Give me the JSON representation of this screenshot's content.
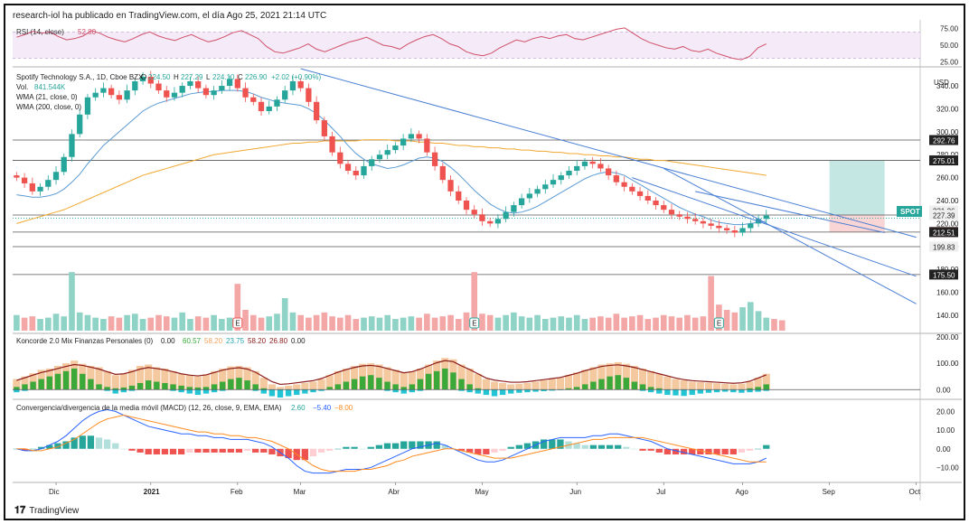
{
  "header": {
    "published_by": "research-iol ha publicado en TradingView.com, el día Ago 25, 2021 21:14 UTC"
  },
  "brand": {
    "name": "TradingView",
    "icon": "tradingview-logo-icon"
  },
  "colors": {
    "up": "#26a69a",
    "down": "#ef5350",
    "rsi": "#ab47bc",
    "wma21": "#5b9bd5",
    "wma200": "#f0a830",
    "trendline": "#4a7fd4",
    "target_zone": "#b2dfdb",
    "stop_zone": "#f8c7c7",
    "macd": "#2962ff",
    "signal": "#ff8a1f",
    "koncorde_line": "#8b1a1a"
  },
  "chart_data": [
    {
      "id": "rsi_panel",
      "type": "line",
      "title": "RSI (14, close)",
      "last_value": "52.80",
      "ylim": [
        20,
        80
      ],
      "y_ticks": [
        "75.00",
        "50.00",
        "25.00"
      ],
      "y_tick_values": [
        75,
        50,
        25
      ],
      "band": [
        30,
        70
      ],
      "values": [
        62,
        66,
        71,
        68,
        70,
        63,
        58,
        60,
        64,
        72,
        68,
        62,
        58,
        55,
        60,
        66,
        70,
        64,
        60,
        57,
        62,
        66,
        60,
        55,
        58,
        63,
        69,
        72,
        66,
        60,
        48,
        40,
        38,
        42,
        46,
        52,
        44,
        40,
        45,
        50,
        55,
        58,
        62,
        56,
        50,
        48,
        44,
        52,
        58,
        63,
        66,
        60,
        52,
        48,
        40,
        36,
        34,
        38,
        46,
        52,
        58,
        55,
        60,
        63,
        60,
        64,
        66,
        60,
        58,
        62,
        66,
        70,
        74,
        76,
        68,
        60,
        54,
        50,
        46,
        44,
        48,
        42,
        40,
        44,
        38,
        34,
        30,
        28,
        33,
        46,
        52
      ]
    },
    {
      "id": "price_panel",
      "type": "candlestick",
      "title": "Spotify Technology S.A., 1D, Cboe BZX",
      "ohlc_header": {
        "o": "224.50",
        "h": "227.29",
        "l": "224.10",
        "c": "226.90",
        "change": "+2.02 (+0.90%)"
      },
      "ticker": "SPOT",
      "currency": "USD",
      "ylim": [
        125,
        355
      ],
      "y_ticks": [
        "340.00",
        "320.00",
        "300.00",
        "280.00",
        "260.00",
        "240.00",
        "220.00",
        "200.00",
        "180.00",
        "160.00",
        "140.00"
      ],
      "y_tick_values": [
        340,
        320,
        300,
        280,
        260,
        240,
        220,
        200,
        180,
        160,
        140
      ],
      "price_labels": [
        {
          "text": "292.76",
          "value": 292.76,
          "style": "dark"
        },
        {
          "text": "275.59",
          "value": 275.59,
          "style": "light"
        },
        {
          "text": "275.01",
          "value": 275.01,
          "style": "dark"
        },
        {
          "text": "231.26",
          "value": 231.26,
          "style": "light"
        },
        {
          "text": "227.39",
          "value": 227.39,
          "style": "light"
        },
        {
          "text": "212.57",
          "value": 212.57,
          "style": "red"
        },
        {
          "text": "212.51",
          "value": 212.51,
          "style": "dark"
        },
        {
          "text": "199.83",
          "value": 199.83,
          "style": "light"
        },
        {
          "text": "175.50",
          "value": 175.5,
          "style": "dark"
        }
      ],
      "horizontal_levels": [
        292.76,
        275.01,
        227.39,
        212.51,
        199.83,
        175.5
      ],
      "x_labels": [
        "Dic",
        "2021",
        "Feb",
        "Mar",
        "Abr",
        "May",
        "Jun",
        "Jul",
        "Ago",
        "Sep",
        "Oct"
      ],
      "x_label_index": [
        5,
        17,
        28,
        36,
        48,
        59,
        71,
        82,
        92,
        103,
        114
      ],
      "total_slots": 115,
      "closes": [
        260,
        255,
        248,
        252,
        258,
        265,
        278,
        298,
        315,
        330,
        334,
        338,
        332,
        328,
        336,
        344,
        348,
        342,
        336,
        330,
        334,
        340,
        344,
        338,
        332,
        336,
        340,
        346,
        338,
        330,
        326,
        318,
        322,
        328,
        336,
        344,
        338,
        326,
        310,
        296,
        282,
        272,
        266,
        262,
        270,
        276,
        280,
        284,
        288,
        294,
        298,
        294,
        282,
        270,
        258,
        248,
        240,
        232,
        228,
        222,
        220,
        224,
        230,
        236,
        242,
        246,
        250,
        254,
        258,
        262,
        266,
        270,
        274,
        272,
        268,
        262,
        256,
        252,
        248,
        244,
        240,
        236,
        232,
        228,
        226,
        224,
        222,
        220,
        218,
        216,
        214,
        212,
        216,
        220,
        224,
        226.9
      ],
      "wma21": [
        245,
        244,
        243,
        243,
        244,
        246,
        250,
        256,
        263,
        272,
        280,
        288,
        294,
        300,
        306,
        312,
        318,
        322,
        325,
        327,
        329,
        331,
        333,
        334,
        335,
        335,
        336,
        336,
        336,
        335,
        333,
        330,
        328,
        326,
        325,
        324,
        323,
        320,
        316,
        310,
        303,
        296,
        288,
        281,
        276,
        272,
        270,
        268,
        269,
        271,
        274,
        277,
        278,
        277,
        274,
        269,
        263,
        256,
        249,
        243,
        237,
        233,
        230,
        229,
        230,
        232,
        235,
        239,
        243,
        247,
        251,
        255,
        259,
        262,
        264,
        265,
        264,
        262,
        258,
        254,
        250,
        246,
        242,
        238,
        234,
        231,
        228,
        226,
        223,
        221,
        220,
        219,
        219,
        220,
        221,
        222
      ],
      "wma200": [
        220,
        222,
        224,
        226,
        228,
        230,
        232,
        235,
        238,
        241,
        244,
        247,
        250,
        253,
        256,
        259,
        262,
        264,
        266,
        268,
        270,
        272,
        274,
        276,
        278,
        280,
        281,
        282,
        283,
        284,
        285,
        286,
        287,
        288,
        289,
        290,
        290,
        291,
        291,
        292,
        292,
        292,
        292,
        292,
        293,
        293,
        293,
        293,
        292,
        292,
        292,
        291,
        291,
        290,
        290,
        289,
        288,
        288,
        287,
        287,
        286,
        286,
        285,
        285,
        284,
        284,
        283,
        283,
        282,
        282,
        281,
        281,
        280,
        280,
        279,
        279,
        278,
        278,
        277,
        276,
        276,
        275,
        275,
        274,
        273,
        272,
        271,
        270,
        269,
        268,
        267,
        266,
        265,
        264,
        263,
        262
      ],
      "trendlines": [
        {
          "x1": 36,
          "y1": 355,
          "x2": 114,
          "y2": 208
        },
        {
          "x1": 82,
          "y1": 268,
          "x2": 114,
          "y2": 150
        },
        {
          "x1": 78,
          "y1": 260,
          "x2": 114,
          "y2": 174
        },
        {
          "x1": 86,
          "y1": 248,
          "x2": 110,
          "y2": 212
        }
      ],
      "position_zone": {
        "x_start": 103,
        "x_end": 110,
        "entry": 227.39,
        "target": 275.01,
        "stop": 212.57
      },
      "event_markers": [
        {
          "x": 28,
          "label": "E",
          "type": "earnings-down"
        },
        {
          "x": 58,
          "label": "E",
          "type": "earnings-neutral"
        },
        {
          "x": 89,
          "label": "E",
          "type": "earnings-neutral"
        }
      ]
    },
    {
      "id": "volume_panel",
      "type": "bar",
      "title": "Vol.",
      "last_value": "841.544K",
      "values": [
        1.2,
        1.0,
        1.1,
        0.9,
        1.0,
        1.3,
        1.1,
        4.5,
        1.4,
        1.2,
        1.0,
        0.9,
        1.1,
        1.0,
        1.2,
        1.3,
        0.9,
        1.0,
        1.2,
        1.1,
        1.0,
        1.4,
        0.9,
        1.1,
        1.0,
        1.2,
        0.9,
        1.0,
        3.6,
        1.6,
        1.2,
        1.0,
        1.1,
        1.3,
        2.5,
        1.4,
        1.2,
        1.0,
        1.2,
        1.4,
        1.1,
        1.0,
        1.2,
        0.9,
        1.0,
        1.1,
        1.0,
        1.2,
        0.9,
        1.0,
        1.1,
        1.0,
        1.3,
        1.0,
        1.1,
        1.2,
        0.9,
        1.4,
        4.5,
        1.3,
        1.2,
        1.0,
        1.2,
        1.4,
        1.1,
        1.0,
        1.2,
        0.9,
        1.0,
        1.1,
        1.0,
        1.2,
        0.9,
        1.0,
        1.1,
        1.0,
        1.3,
        1.0,
        1.1,
        1.2,
        0.9,
        1.0,
        1.2,
        1.1,
        1.0,
        1.2,
        1.0,
        1.1,
        4.2,
        2.0,
        1.6,
        1.4,
        1.8,
        2.2,
        1.5,
        1.0,
        0.9,
        0.8
      ],
      "last_label": "841.544K"
    },
    {
      "id": "koncorde_panel",
      "type": "bar",
      "title": "Koncorde 2.0 Mix Finanzas Personales (0)",
      "legend_values": [
        "0.00",
        "60.57",
        "58.20",
        "23.75",
        "58.20",
        "26.80",
        "0.00"
      ],
      "ylim": [
        -30,
        210
      ],
      "y_ticks": [
        "200.00",
        "100.00",
        "0.00"
      ],
      "y_tick_values": [
        200,
        100,
        0
      ],
      "brown": [
        40,
        50,
        62,
        75,
        80,
        90,
        100,
        110,
        98,
        90,
        85,
        70,
        55,
        60,
        75,
        90,
        95,
        85,
        80,
        70,
        60,
        55,
        50,
        58,
        70,
        80,
        88,
        90,
        85,
        70,
        45,
        20,
        10,
        15,
        20,
        25,
        30,
        40,
        55,
        70,
        80,
        90,
        98,
        100,
        95,
        85,
        75,
        65,
        70,
        80,
        95,
        110,
        120,
        115,
        95,
        80,
        60,
        40,
        30,
        25,
        20,
        22,
        25,
        30,
        35,
        40,
        45,
        55,
        65,
        75,
        85,
        95,
        100,
        104,
        98,
        90,
        80,
        70,
        60,
        50,
        40,
        35,
        30,
        28,
        26,
        24,
        22,
        20,
        22,
        30,
        45,
        60
      ],
      "green": [
        10,
        20,
        30,
        40,
        50,
        60,
        70,
        80,
        60,
        40,
        20,
        10,
        5,
        8,
        15,
        25,
        35,
        30,
        25,
        20,
        15,
        10,
        8,
        10,
        20,
        30,
        40,
        45,
        35,
        20,
        5,
        0,
        0,
        0,
        0,
        0,
        0,
        0,
        10,
        20,
        30,
        40,
        50,
        55,
        45,
        30,
        20,
        10,
        20,
        40,
        60,
        70,
        80,
        65,
        40,
        20,
        5,
        0,
        0,
        0,
        0,
        0,
        0,
        0,
        0,
        0,
        0,
        5,
        10,
        20,
        30,
        40,
        50,
        55,
        45,
        30,
        20,
        10,
        5,
        0,
        0,
        0,
        0,
        0,
        0,
        0,
        0,
        0,
        0,
        5,
        10,
        20
      ],
      "blue": [
        10,
        5,
        0,
        0,
        0,
        0,
        0,
        0,
        0,
        0,
        0,
        5,
        15,
        10,
        5,
        0,
        0,
        0,
        0,
        5,
        10,
        15,
        20,
        15,
        10,
        5,
        0,
        0,
        0,
        5,
        15,
        25,
        30,
        25,
        20,
        15,
        10,
        5,
        0,
        0,
        0,
        0,
        0,
        0,
        0,
        5,
        10,
        15,
        10,
        5,
        0,
        0,
        0,
        0,
        5,
        10,
        15,
        20,
        25,
        20,
        15,
        12,
        10,
        8,
        6,
        4,
        2,
        0,
        0,
        0,
        0,
        0,
        0,
        0,
        0,
        0,
        5,
        10,
        15,
        20,
        22,
        24,
        20,
        15,
        12,
        10,
        8,
        10,
        12,
        10,
        8,
        5
      ],
      "line": [
        35,
        45,
        55,
        65,
        72,
        80,
        88,
        95,
        92,
        85,
        78,
        68,
        58,
        60,
        68,
        78,
        84,
        80,
        75,
        68,
        60,
        55,
        52,
        56,
        65,
        74,
        80,
        83,
        78,
        66,
        48,
        30,
        20,
        22,
        26,
        30,
        34,
        42,
        54,
        66,
        76,
        84,
        90,
        92,
        88,
        80,
        72,
        64,
        68,
        78,
        90,
        102,
        110,
        106,
        90,
        76,
        60,
        44,
        36,
        32,
        28,
        28,
        30,
        34,
        38,
        42,
        46,
        54,
        62,
        72,
        80,
        88,
        92,
        94,
        90,
        84,
        76,
        68,
        60,
        52,
        44,
        38,
        34,
        32,
        30,
        28,
        26,
        24,
        26,
        32,
        44,
        56
      ]
    },
    {
      "id": "macd_panel",
      "type": "bar",
      "title": "Convergencia/divergencia de la media móvil (MACD) (12, 26, close, 9, EMA, EMA)",
      "legend_values": [
        "2.60",
        "−5.40",
        "−8.00"
      ],
      "ylim": [
        -18,
        26
      ],
      "y_ticks": [
        "20.00",
        "10.00",
        "0.00",
        "−10.00"
      ],
      "y_tick_values": [
        20,
        10,
        0,
        -10
      ],
      "macd": [
        0,
        -1,
        -1,
        0,
        2,
        4,
        7,
        11,
        15,
        18,
        20,
        21,
        20,
        18,
        16,
        14,
        12,
        11,
        10,
        9,
        8,
        8,
        7,
        7,
        6,
        6,
        5,
        5,
        5,
        4,
        3,
        1,
        -2,
        -5,
        -9,
        -12,
        -13,
        -13,
        -13,
        -12,
        -11,
        -11,
        -11,
        -10,
        -8,
        -6,
        -4,
        -2,
        0,
        1,
        2,
        3,
        2,
        0,
        -2,
        -4,
        -6,
        -7,
        -7,
        -6,
        -4,
        -2,
        0,
        2,
        4,
        5,
        6,
        6,
        6,
        6,
        7,
        7,
        8,
        8,
        7,
        6,
        5,
        4,
        2,
        0,
        -1,
        -2,
        -3,
        -4,
        -5,
        -6,
        -7,
        -8,
        -8,
        -8,
        -7,
        -5
      ],
      "signal": [
        0,
        0,
        -1,
        -1,
        0,
        1,
        3,
        5,
        8,
        11,
        14,
        16,
        17,
        18,
        17,
        16,
        15,
        14,
        13,
        12,
        11,
        10,
        9,
        9,
        8,
        8,
        7,
        7,
        6,
        6,
        5,
        4,
        2,
        0,
        -3,
        -6,
        -9,
        -11,
        -12,
        -12,
        -12,
        -12,
        -11,
        -11,
        -10,
        -9,
        -7,
        -6,
        -4,
        -3,
        -2,
        -1,
        0,
        0,
        -1,
        -2,
        -3,
        -4,
        -5,
        -5,
        -5,
        -4,
        -3,
        -2,
        -1,
        0,
        1,
        2,
        3,
        4,
        5,
        5,
        6,
        6,
        6,
        6,
        6,
        5,
        4,
        3,
        2,
        1,
        0,
        -1,
        -2,
        -3,
        -4,
        -5,
        -6,
        -7,
        -7,
        -7
      ]
    }
  ]
}
